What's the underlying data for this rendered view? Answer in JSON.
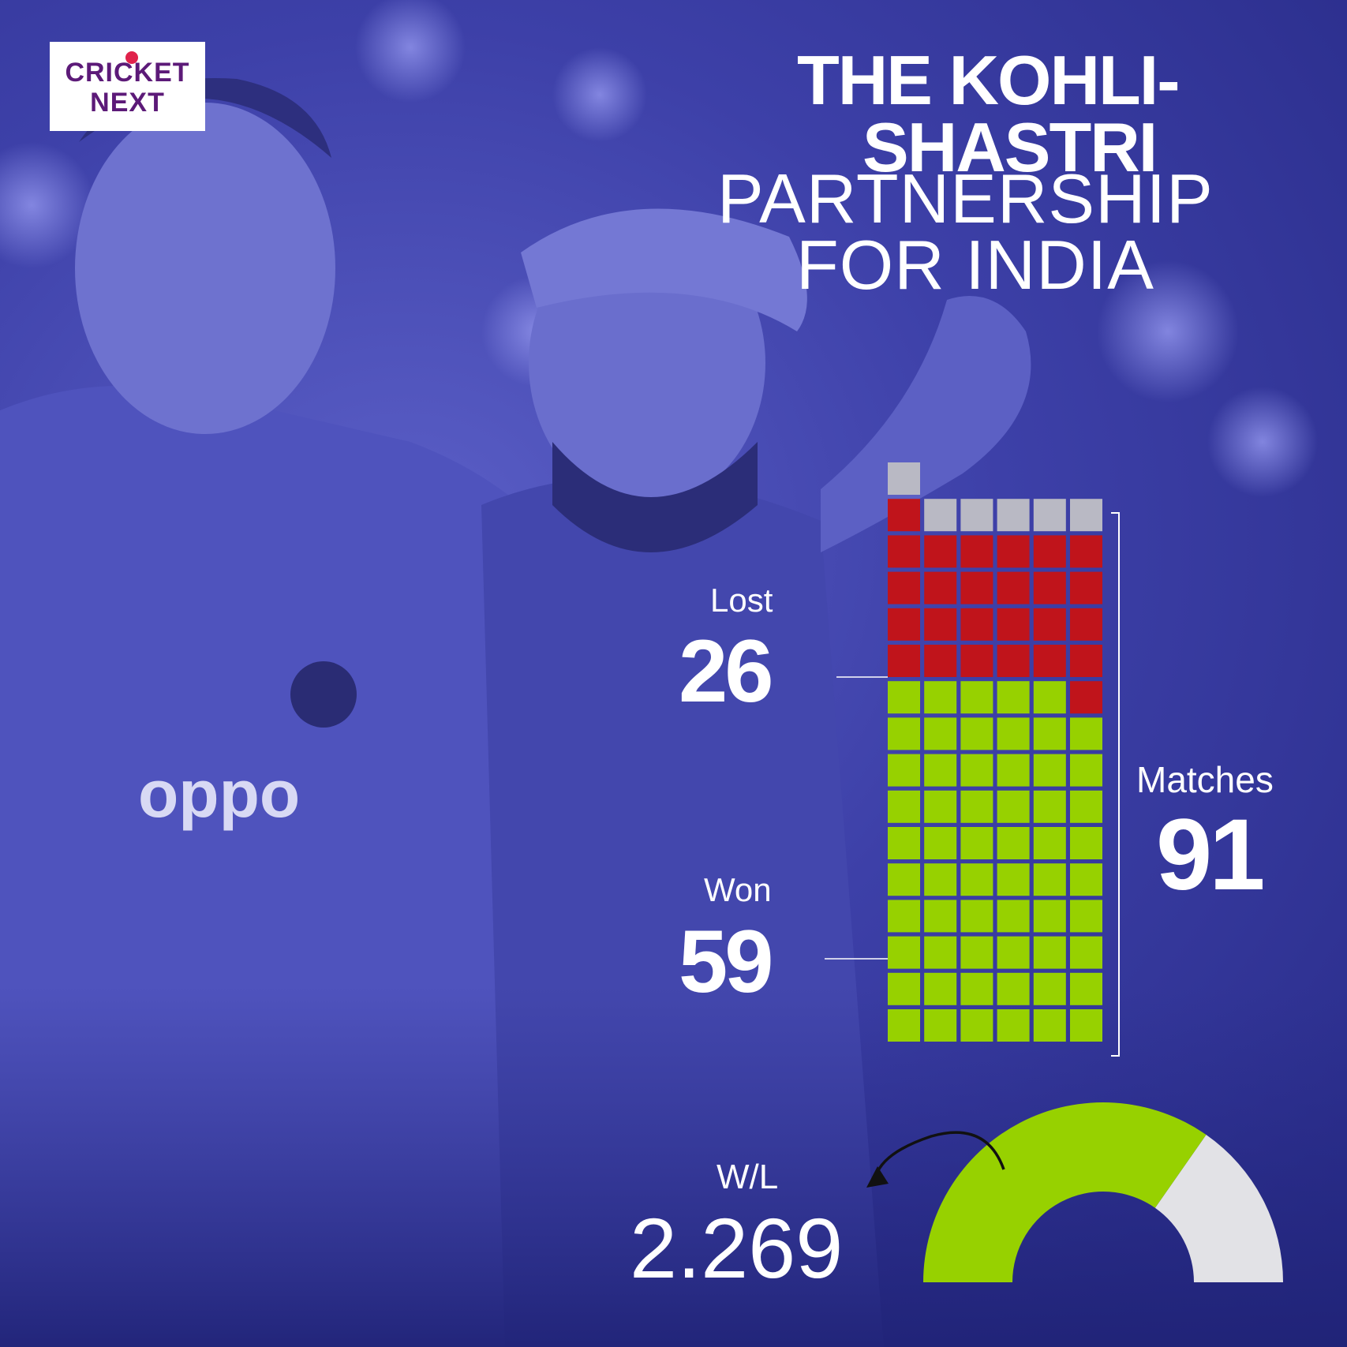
{
  "logo": {
    "line1": "CRICKET",
    "line2": "NEXT"
  },
  "title": {
    "line1": "THE KOHLI-",
    "line2": "SHASTRI",
    "line3": "PARTNERSHIP",
    "line4": "FOR INDIA"
  },
  "stats": {
    "lost_label": "Lost",
    "lost_value": "26",
    "won_label": "Won",
    "won_value": "59",
    "matches_label": "Matches",
    "matches_value": "91",
    "wl_label": "W/L",
    "wl_value": "2.269"
  },
  "colors": {
    "won": "#97d100",
    "lost": "#c0141b",
    "other": "#b9b9c4",
    "gauge_rest": "#e2e2e6",
    "background": "#3d40a8"
  },
  "chart_data": [
    {
      "type": "waffle",
      "total": 91,
      "columns": 6,
      "series": [
        {
          "name": "Won",
          "value": 59
        },
        {
          "name": "Lost",
          "value": 26
        },
        {
          "value": 6
        }
      ]
    },
    {
      "type": "gauge",
      "value_fraction": 0.694,
      "label": "W/L",
      "display_value": "2.269"
    }
  ]
}
